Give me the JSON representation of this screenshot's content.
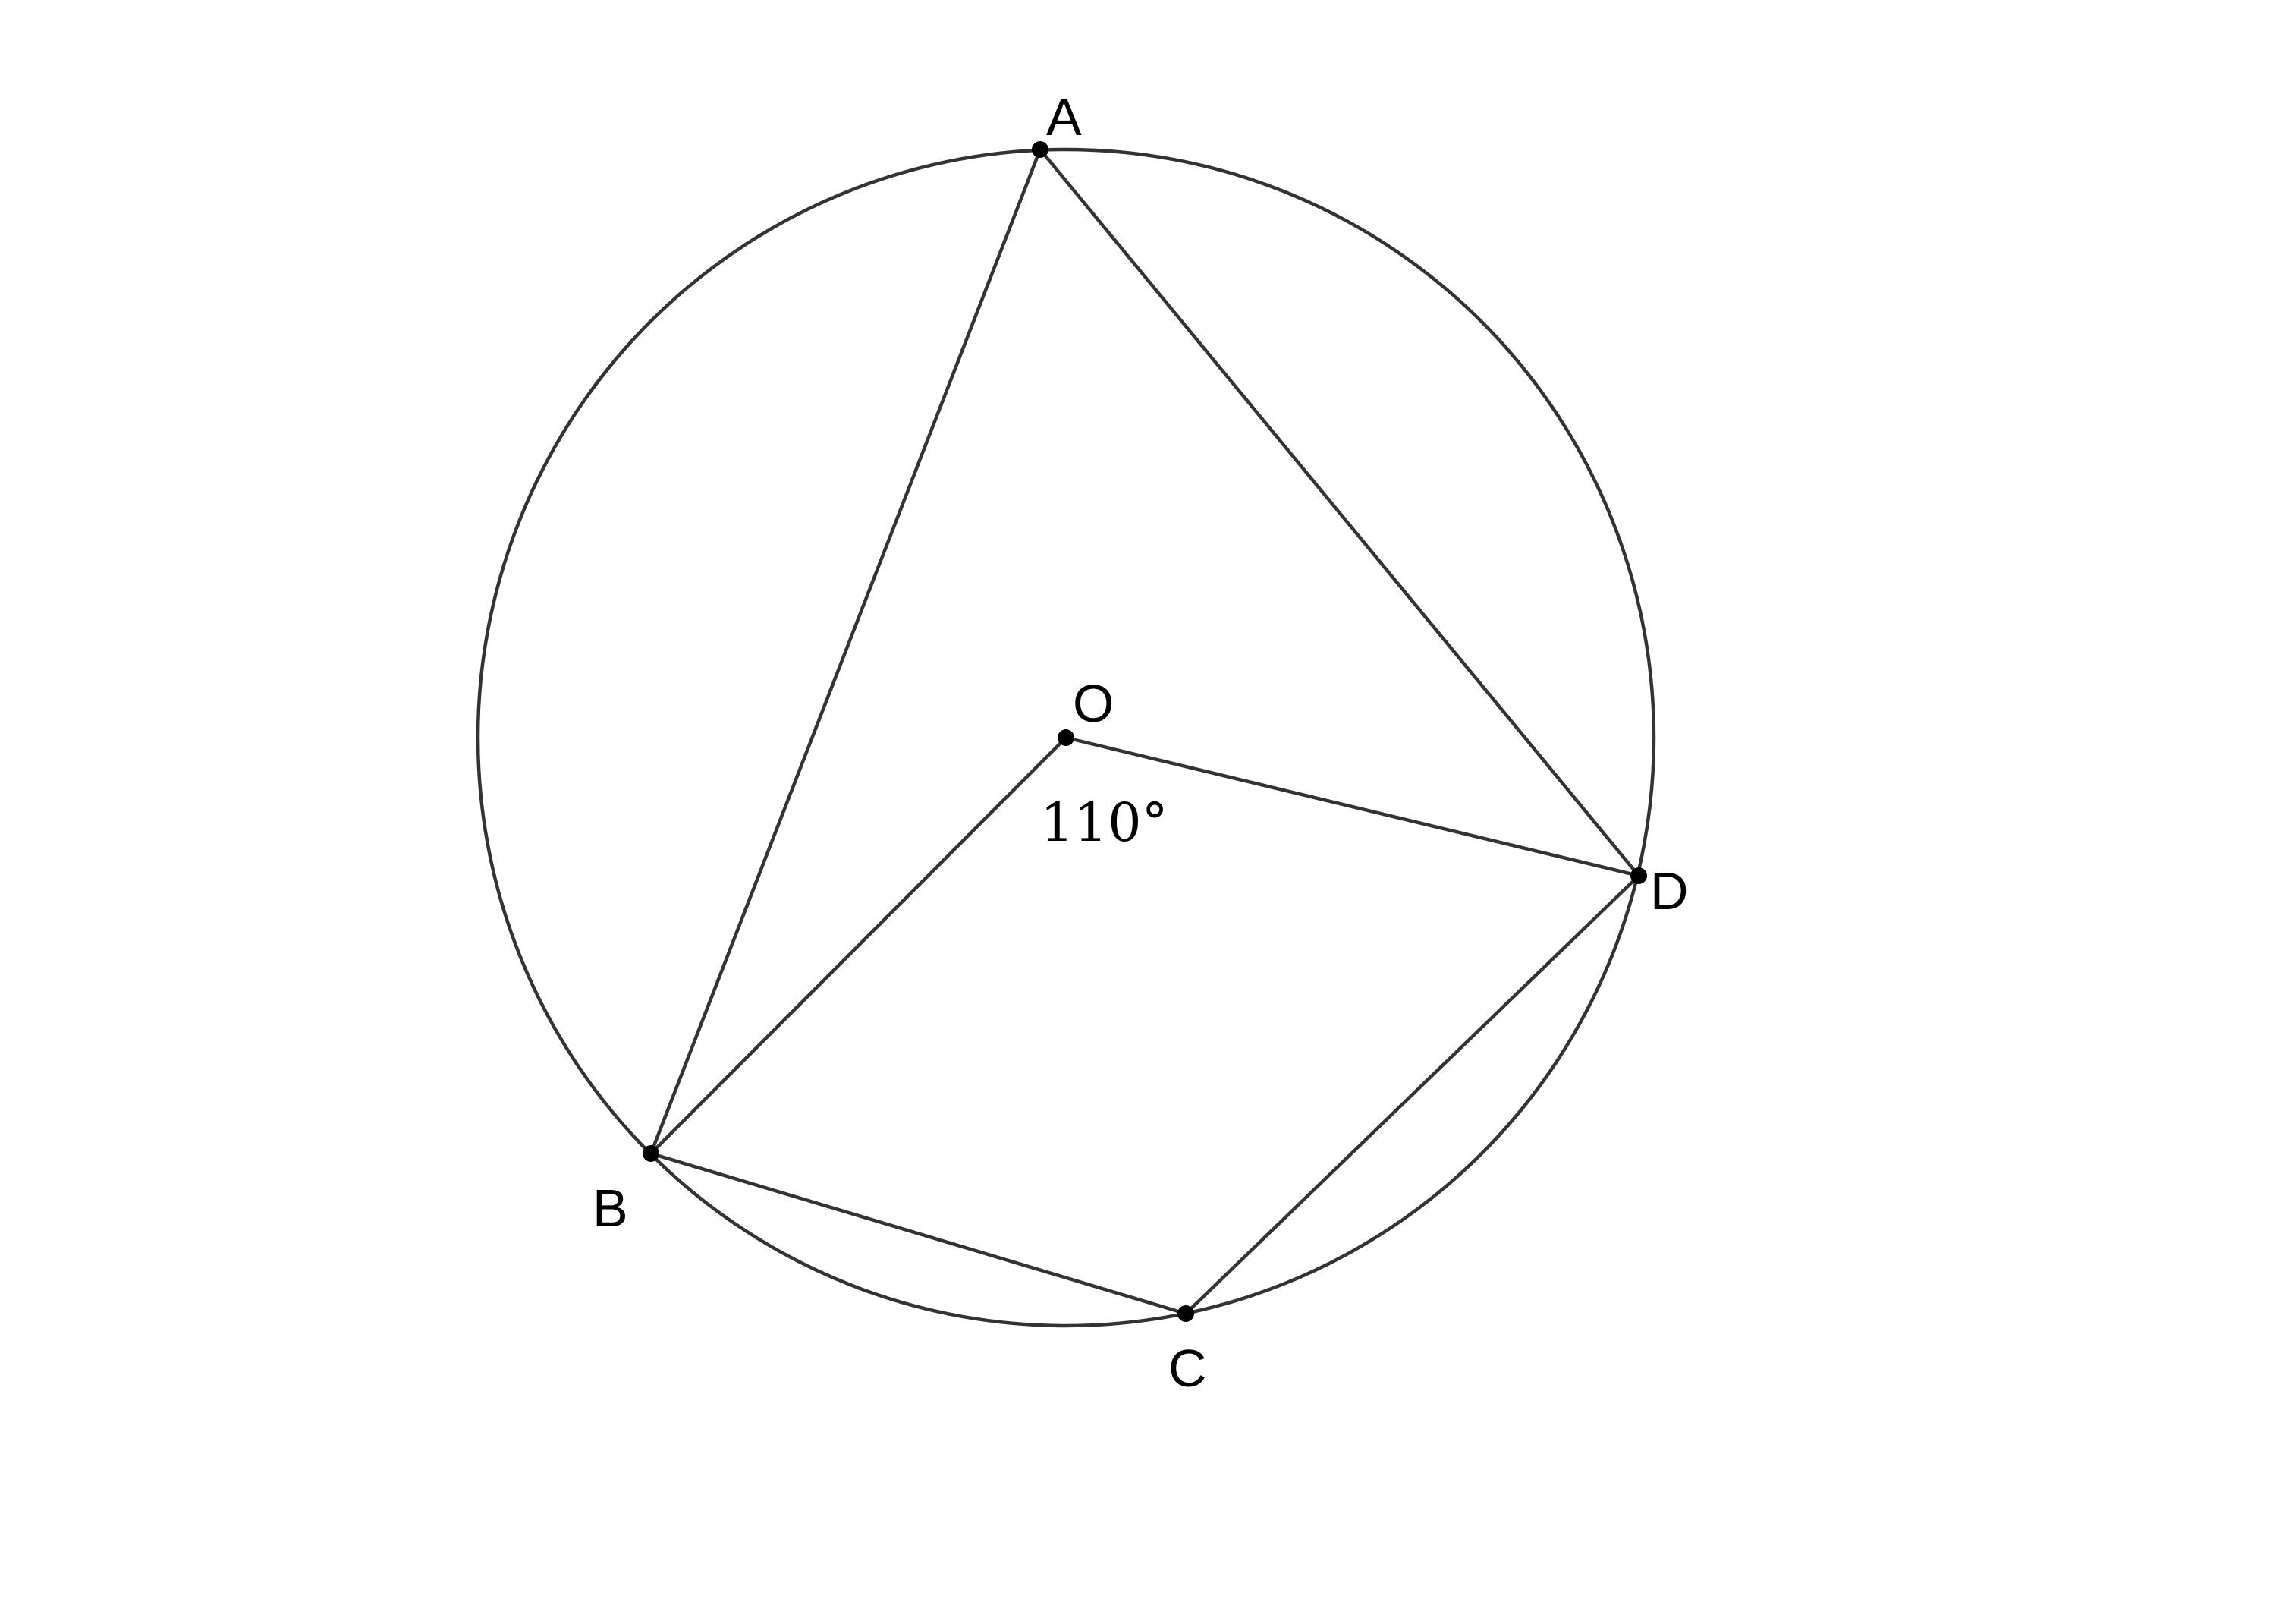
{
  "points": {
    "A": "A",
    "B": "B",
    "C": "C",
    "D": "D",
    "O": "O"
  },
  "angle_label": "110°",
  "colors": {
    "stroke": "#333333",
    "point": "#000000",
    "background": "#ffffff"
  }
}
